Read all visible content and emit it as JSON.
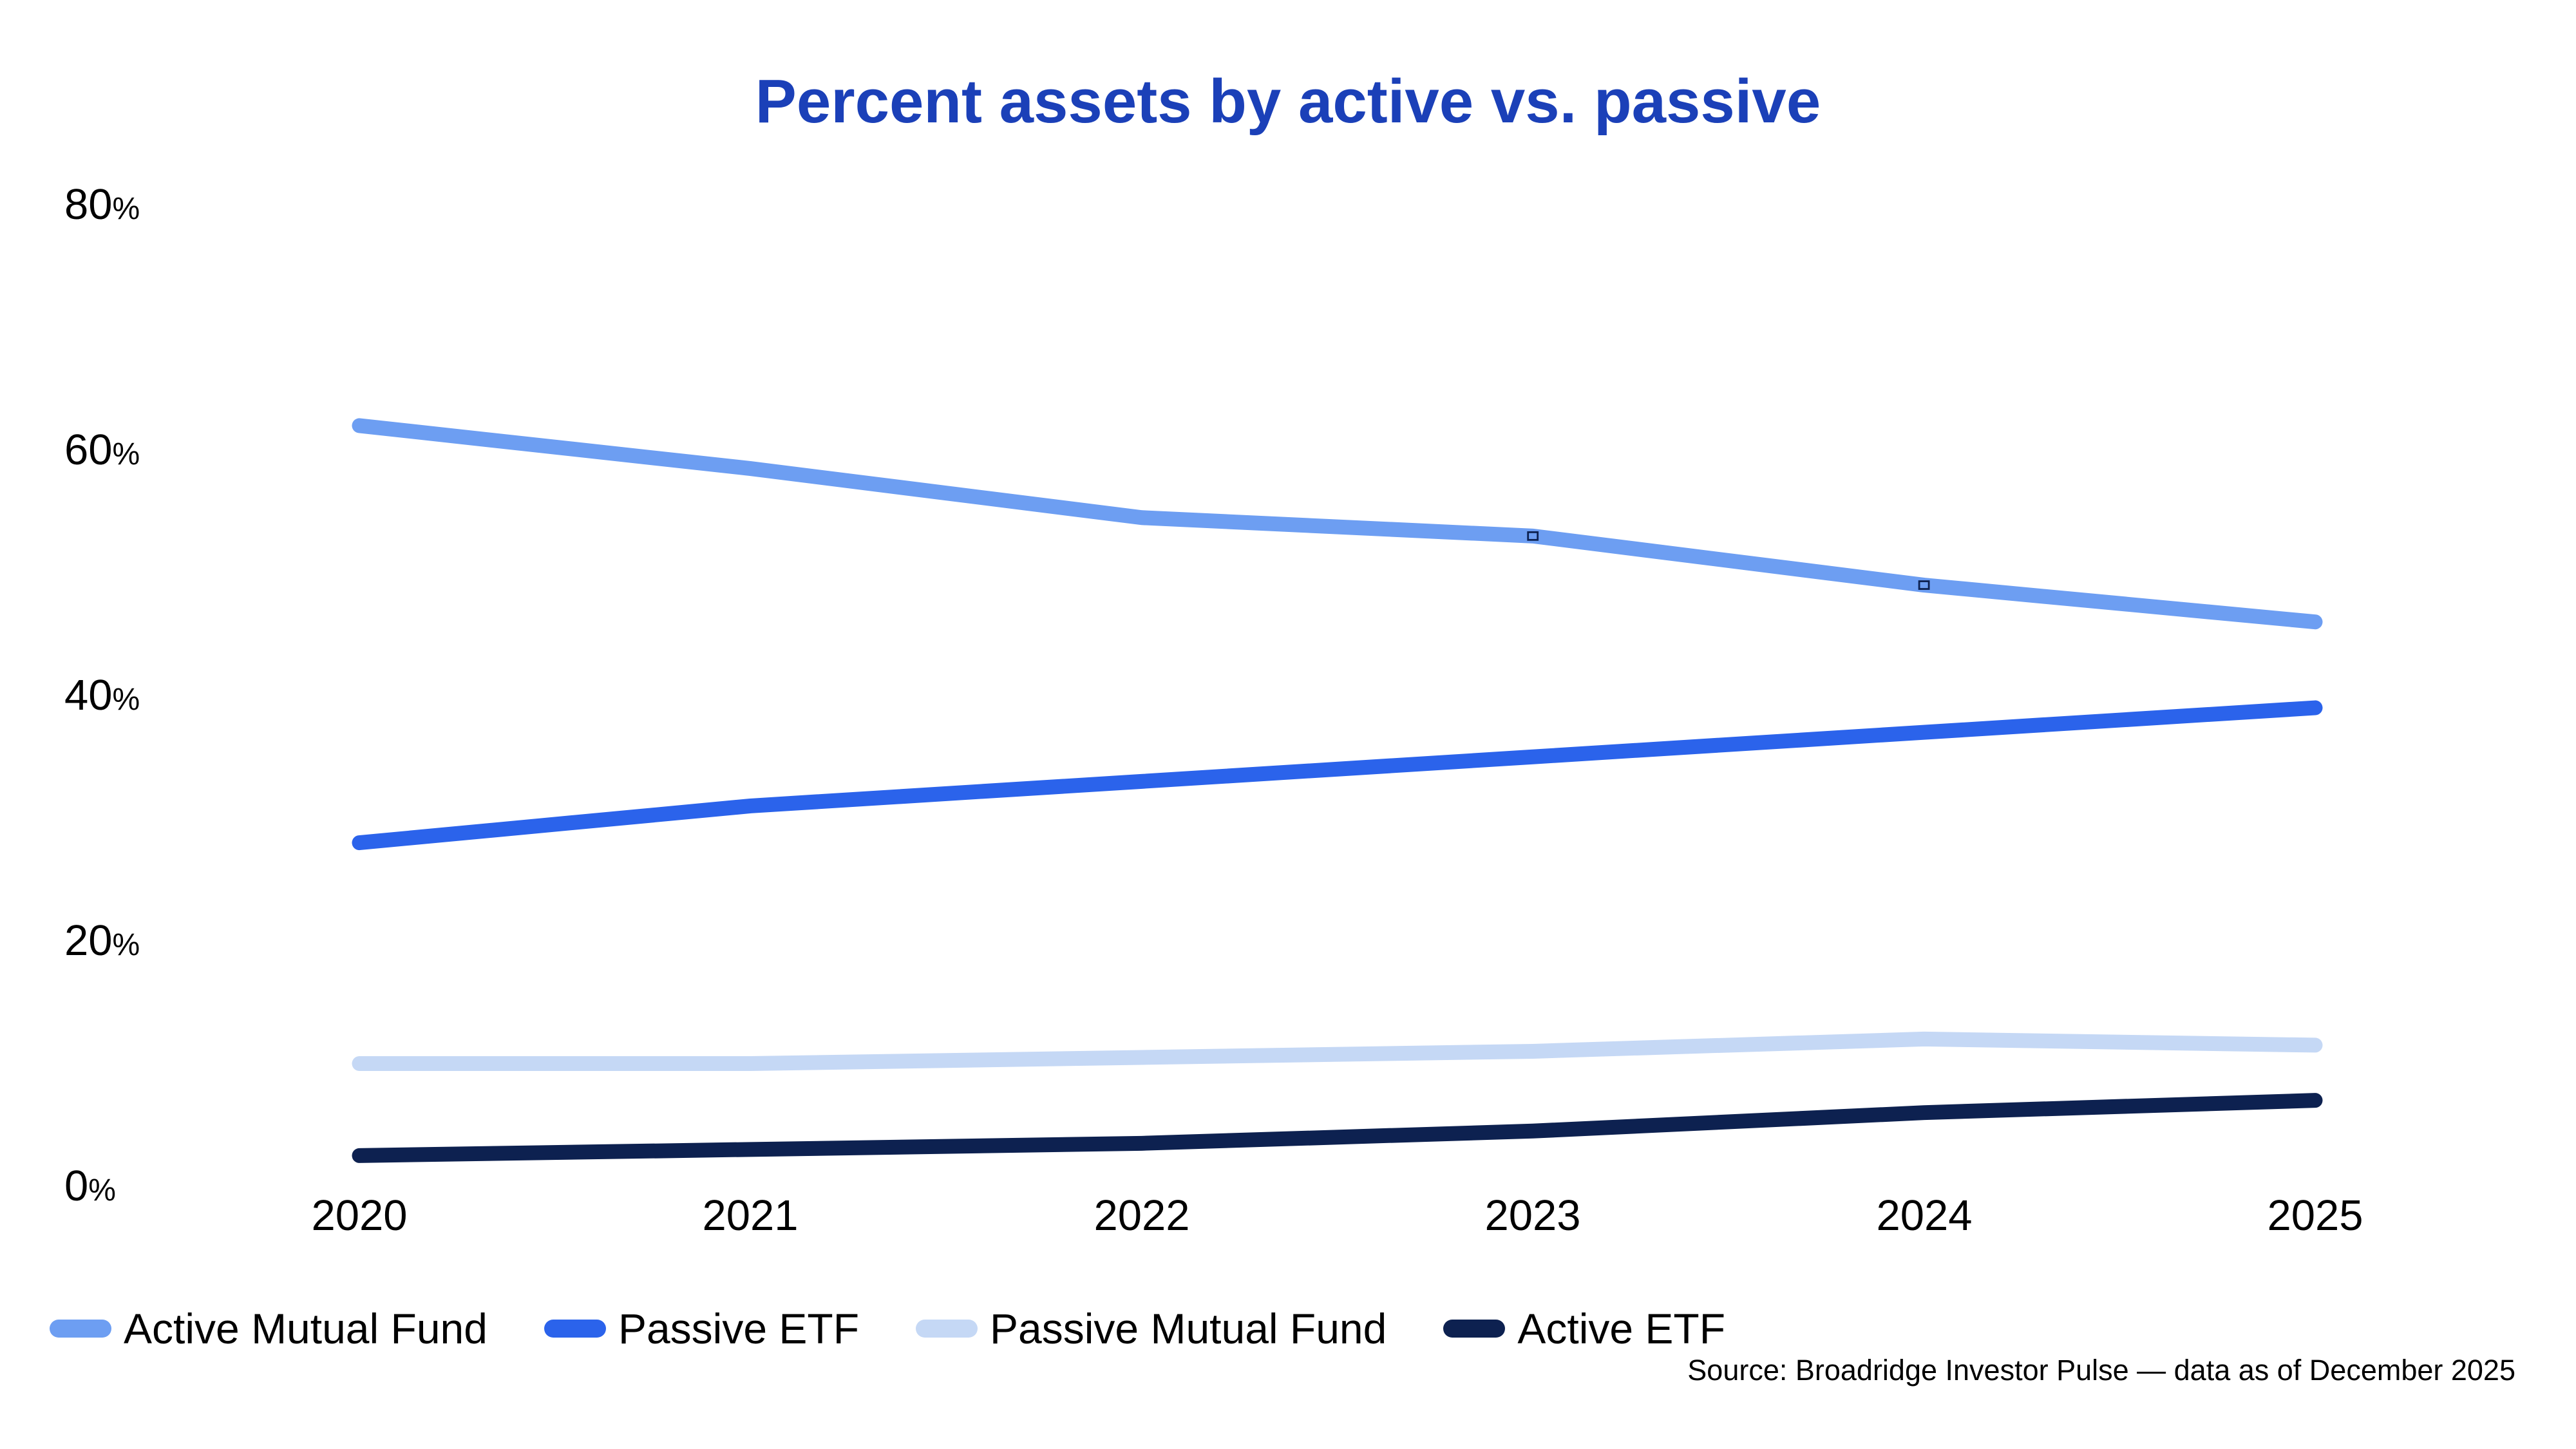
{
  "title": "Percent assets by active vs. passive",
  "source_note": "Source: Broadridge Investor Pulse — data as of December 2025",
  "colors": {
    "title": "#1B40B8",
    "text": "#000000",
    "marker_outline": "#0D2150",
    "active_mutual_fund": "#6D9EF2",
    "passive_etf": "#2B63EB",
    "passive_mutual_fund": "#C5D8F5",
    "active_etf": "#0D2150"
  },
  "y_axis": {
    "tick_labels": [
      "80",
      "60",
      "40",
      "20",
      "0"
    ],
    "suffix": "%"
  },
  "x_axis": {
    "labels": [
      "2020",
      "2021",
      "2022",
      "2023",
      "2024",
      "2025"
    ]
  },
  "legend": {
    "position": "bottom-left"
  },
  "chart_data": {
    "type": "line",
    "title": "Percent assets by active vs. passive",
    "x": [
      2020,
      2021,
      2022,
      2023,
      2024,
      2025
    ],
    "series": [
      {
        "name": "Active Mutual Fund",
        "color": "#6D9EF2",
        "values": [
          62,
          58.5,
          54.5,
          53,
          49,
          46
        ],
        "point_markers_at": [
          2023,
          2024
        ]
      },
      {
        "name": "Passive ETF",
        "color": "#2B63EB",
        "values": [
          28,
          31,
          33,
          35,
          37,
          39
        ]
      },
      {
        "name": "Passive Mutual Fund",
        "color": "#C5D8F5",
        "values": [
          10,
          10,
          10.5,
          11,
          12,
          11.5
        ]
      },
      {
        "name": "Active ETF",
        "color": "#0D2150",
        "values": [
          2.5,
          3,
          3.5,
          4.5,
          6,
          7
        ]
      }
    ],
    "ylim": [
      0,
      80
    ],
    "y_ticks": [
      0,
      20,
      40,
      60,
      80
    ],
    "y_tick_suffix": "%",
    "xlabel": "",
    "ylabel": "",
    "grid": false,
    "legend_position": "bottom-left",
    "source": "Source: Broadridge Investor Pulse — data as of December 2025"
  }
}
